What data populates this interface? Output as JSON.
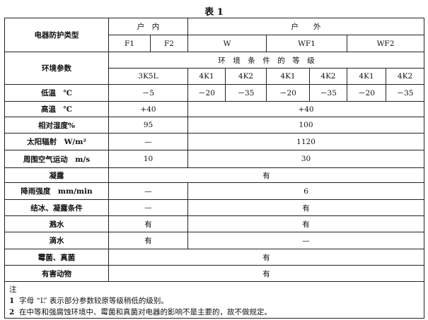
{
  "title": "表 1",
  "rows": [
    {
      "h": 24,
      "cells": [
        {
          "t": "电器防护类型",
          "rs": 2,
          "cls": "param"
        },
        {
          "t": "户　内",
          "cs": 2
        },
        {
          "t": "户　　外",
          "cs": 6
        }
      ]
    },
    {
      "h": 24,
      "cells": [
        {
          "t": "F1"
        },
        {
          "t": "F2"
        },
        {
          "t": "W",
          "cs": 2
        },
        {
          "t": "WF1",
          "cs": 2
        },
        {
          "t": "WF2",
          "cs": 2
        }
      ]
    },
    {
      "h": 23,
      "cells": [
        {
          "t": "环境参数",
          "rs": 2,
          "cls": "param"
        },
        {
          "t": "环　境　条　件　的　等　级",
          "cs": 8
        }
      ]
    },
    {
      "h": 23,
      "cells": [
        {
          "t": "3K5L",
          "cs": 2
        },
        {
          "t": "4K1"
        },
        {
          "t": "4K2"
        },
        {
          "t": "4K1"
        },
        {
          "t": "4K2"
        },
        {
          "t": "4K1"
        },
        {
          "t": "4K2"
        }
      ]
    },
    {
      "h": 24,
      "cells": [
        {
          "t": "低温　℃",
          "cls": "param"
        },
        {
          "t": "－5",
          "cs": 2
        },
        {
          "t": "－20"
        },
        {
          "t": "－35"
        },
        {
          "t": "－20"
        },
        {
          "t": "－35"
        },
        {
          "t": "－20"
        },
        {
          "t": "－35"
        }
      ]
    },
    {
      "h": 22,
      "cells": [
        {
          "t": "高温　℃",
          "cls": "param"
        },
        {
          "t": "+40",
          "cs": 2
        },
        {
          "t": "+40",
          "cs": 6
        }
      ]
    },
    {
      "h": 23,
      "cells": [
        {
          "t": "相对湿度%",
          "cls": "param"
        },
        {
          "t": "95",
          "cs": 2
        },
        {
          "t": "100",
          "cs": 6
        }
      ]
    },
    {
      "h": 24,
      "cells": [
        {
          "t": "太阳辐射　W/m²",
          "cls": "param"
        },
        {
          "t": "—",
          "cs": 2
        },
        {
          "t": "1120",
          "cs": 6
        }
      ]
    },
    {
      "h": 25,
      "cells": [
        {
          "t": "周围空气运动　m/s",
          "cls": "param"
        },
        {
          "t": "10",
          "cs": 2
        },
        {
          "t": "30",
          "cs": 6
        }
      ]
    },
    {
      "h": 21,
      "cells": [
        {
          "t": "凝露",
          "cls": "param"
        },
        {
          "t": "有",
          "cs": 8
        }
      ]
    },
    {
      "h": 24,
      "cells": [
        {
          "t": "降雨强度　mm/min",
          "cls": "param"
        },
        {
          "t": "—",
          "cs": 2
        },
        {
          "t": "6",
          "cs": 6
        }
      ]
    },
    {
      "h": 23,
      "cells": [
        {
          "t": "结冰、凝露条件",
          "cls": "param"
        },
        {
          "t": "—",
          "cs": 2
        },
        {
          "t": "有",
          "cs": 6
        }
      ]
    },
    {
      "h": 23,
      "cells": [
        {
          "t": "溅水",
          "cls": "param"
        },
        {
          "t": "有",
          "cs": 2
        },
        {
          "t": "有",
          "cs": 6
        }
      ]
    },
    {
      "h": 24,
      "cells": [
        {
          "t": "滴水",
          "cls": "param"
        },
        {
          "t": "有",
          "cs": 2
        },
        {
          "t": "—",
          "cs": 6
        }
      ]
    },
    {
      "h": 23,
      "cells": [
        {
          "t": "霉菌、真菌",
          "cls": "param"
        },
        {
          "t": "有",
          "cs": 8
        }
      ]
    },
    {
      "h": 23,
      "cells": [
        {
          "t": "有害动物",
          "cls": "param"
        },
        {
          "t": "有",
          "cs": 8
        }
      ]
    }
  ],
  "notes": {
    "heading": "注",
    "items": [
      {
        "num": "1",
        "text": "字母 “L” 表示部分参数较原等级稍低的级别。"
      },
      {
        "num": "2",
        "text": "在中等和强腐蚀环境中、霉菌和真菌对电器的影响不是主要的，故不做规定。"
      }
    ]
  }
}
